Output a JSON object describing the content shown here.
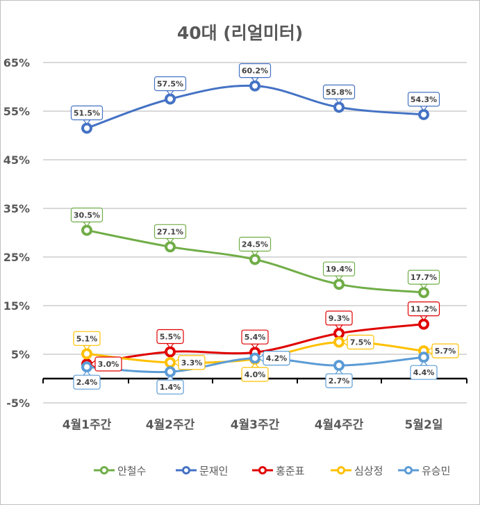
{
  "chart_data": {
    "type": "line",
    "title": "40대 (리얼미터)",
    "categories": [
      "4월1주간",
      "4월2주간",
      "4월3주간",
      "4월4주간",
      "5월2일"
    ],
    "ylim": [
      -5,
      65
    ],
    "yticks": [
      -5,
      5,
      15,
      25,
      35,
      45,
      55,
      65
    ],
    "ytick_labels": [
      "-5%",
      "5%",
      "15%",
      "25%",
      "35%",
      "45%",
      "55%",
      "65%"
    ],
    "grid": true,
    "legend_position": "bottom",
    "series": [
      {
        "name": "안철수",
        "color": "#70ad47",
        "values": [
          30.5,
          27.1,
          24.5,
          19.4,
          17.7
        ],
        "labels": [
          "30.5%",
          "27.1%",
          "24.5%",
          "19.4%",
          "17.7%"
        ],
        "label_pos": [
          "above",
          "above",
          "above",
          "above",
          "above"
        ]
      },
      {
        "name": "문재인",
        "color": "#4472c4",
        "values": [
          51.5,
          57.5,
          60.2,
          55.8,
          54.3
        ],
        "labels": [
          "51.5%",
          "57.5%",
          "60.2%",
          "55.8%",
          "54.3%"
        ],
        "label_pos": [
          "above",
          "above",
          "above",
          "above",
          "above"
        ]
      },
      {
        "name": "홍준표",
        "color": "#e00000",
        "values": [
          3.0,
          5.5,
          5.4,
          9.3,
          11.2
        ],
        "labels": [
          "3.0%",
          "5.5%",
          "5.4%",
          "9.3%",
          "11.2%"
        ],
        "label_pos": [
          "right",
          "above",
          "above",
          "above",
          "above"
        ]
      },
      {
        "name": "심상정",
        "color": "#ffc000",
        "values": [
          5.1,
          3.3,
          4.0,
          7.5,
          5.7
        ],
        "labels": [
          "5.1%",
          "3.3%",
          "4.0%",
          "7.5%",
          "5.7%"
        ],
        "label_pos": [
          "above",
          "right",
          "below",
          "right",
          "right"
        ]
      },
      {
        "name": "유승민",
        "color": "#5b9bd5",
        "values": [
          2.4,
          1.4,
          4.2,
          2.7,
          4.4
        ],
        "labels": [
          "2.4%",
          "1.4%",
          "4.2%",
          "2.7%",
          "4.4%"
        ],
        "label_pos": [
          "below",
          "below",
          "right",
          "below",
          "below"
        ]
      }
    ]
  }
}
